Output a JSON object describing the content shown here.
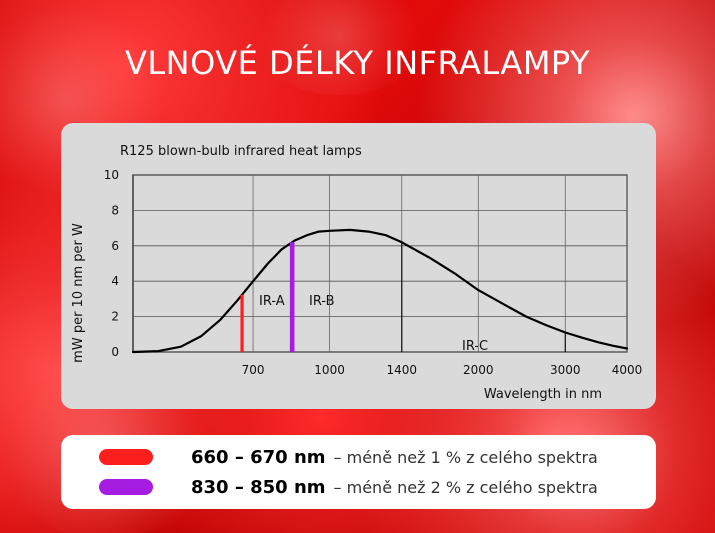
{
  "header": {
    "title": "VLNOVÉ DÉLKY INFRALAMPY"
  },
  "legend": [
    {
      "range": "660 – 670 nm",
      "description": "– méně než 1 % z celého spektra",
      "color": "#ff1e1e"
    },
    {
      "range": "830 – 850 nm",
      "description": "– méně než 2 % z celého spektra",
      "color": "#a51de0"
    }
  ],
  "chart_data": {
    "type": "line",
    "title": "R125 blown-bulb infrared heat lamps",
    "xlabel": "Wavelength in nm",
    "ylabel": "mW per 10 nm per W",
    "ylim": [
      0,
      10
    ],
    "y_ticks": [
      0,
      2,
      4,
      6,
      8,
      10
    ],
    "x_ticks": [
      "700",
      "1000",
      "1400",
      "2000",
      "3000",
      "4000"
    ],
    "x_tick_values": [
      700,
      1000,
      1400,
      2000,
      3000,
      4000
    ],
    "grid": true,
    "series": [
      {
        "x": [
          400,
          450,
          500,
          550,
          600,
          650,
          700,
          750,
          800,
          850,
          900,
          950,
          1000,
          1100,
          1200,
          1300,
          1400,
          1600,
          1800,
          2000,
          2250,
          2500,
          2750,
          3000,
          3250,
          3500,
          3750,
          4000
        ],
        "values": [
          0,
          0.05,
          0.3,
          0.9,
          1.8,
          2.9,
          4.0,
          5.0,
          5.8,
          6.3,
          6.6,
          6.8,
          6.85,
          6.9,
          6.8,
          6.6,
          6.2,
          5.3,
          4.4,
          3.5,
          2.7,
          2.0,
          1.5,
          1.1,
          0.8,
          0.55,
          0.35,
          0.2
        ]
      }
    ],
    "bands": [
      {
        "label": "IR-A",
        "x_from": 760,
        "x_to": 1400
      },
      {
        "label": "IR-B",
        "x_from": 1400,
        "x_to": 3000
      },
      {
        "label": "IR-C",
        "x_from": 3000,
        "x_to": 4000
      }
    ],
    "highlights": [
      {
        "name": "660 – 670 nm",
        "x_from": 660,
        "x_to": 670,
        "color": "#ff1e1e"
      },
      {
        "name": "830 – 850 nm",
        "x_from": 830,
        "x_to": 850,
        "color": "#a51de0"
      }
    ]
  }
}
